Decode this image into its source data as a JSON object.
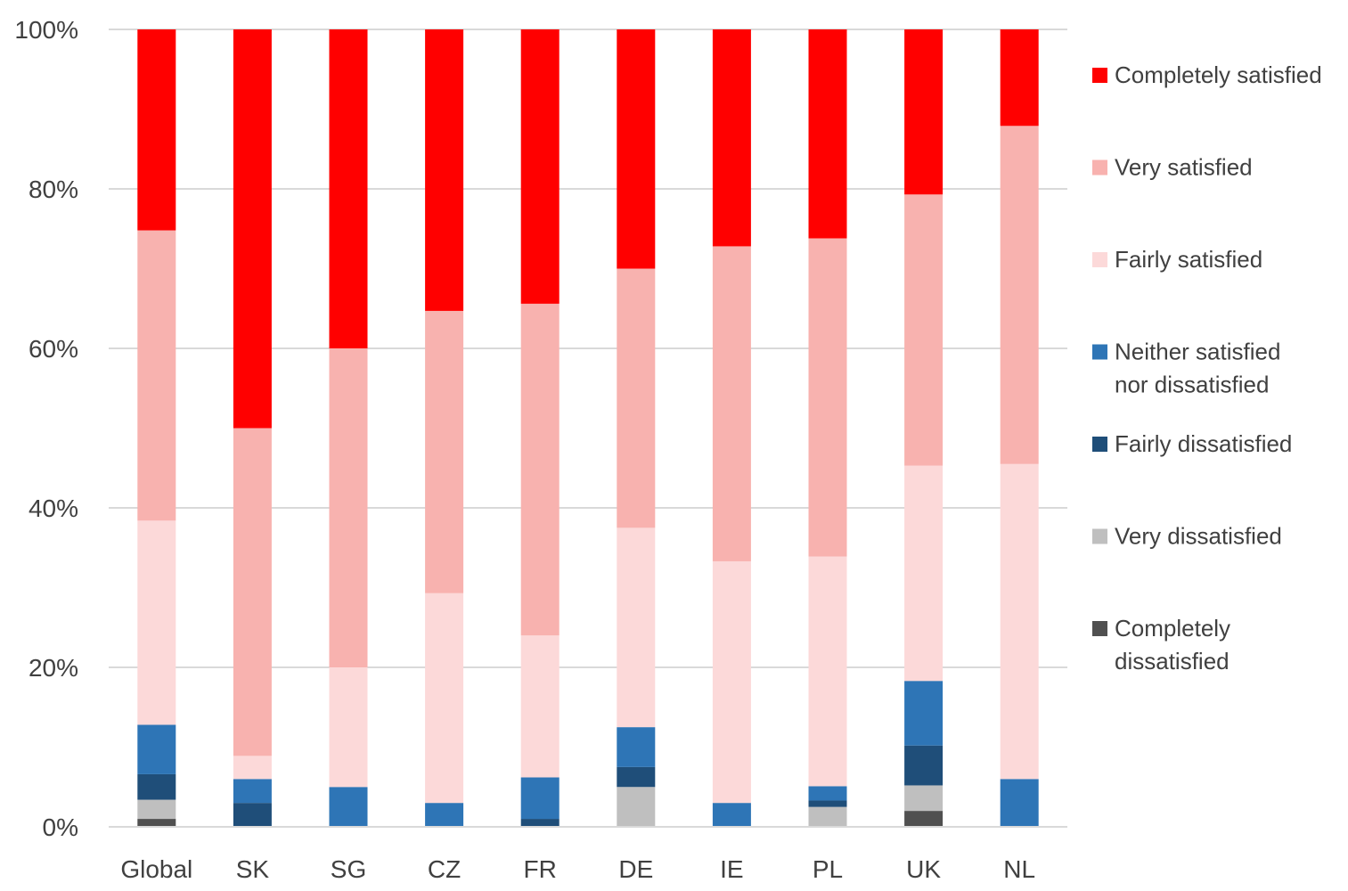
{
  "chart_data": {
    "type": "bar",
    "stacked": true,
    "normalized": true,
    "title": "",
    "xlabel": "",
    "ylabel": "",
    "ylim": [
      0,
      100
    ],
    "y_ticks": [
      "0%",
      "20%",
      "40%",
      "60%",
      "80%",
      "100%"
    ],
    "y_tick_values": [
      0,
      20,
      40,
      60,
      80,
      100
    ],
    "grid": true,
    "legend_position": "right",
    "categories": [
      "Global",
      "SK",
      "SG",
      "CZ",
      "FR",
      "DE",
      "IE",
      "PL",
      "UK",
      "NL"
    ],
    "series": [
      {
        "name": "Completely dissatisfied",
        "legend_lines": [
          "Completely",
          "dissatisfied"
        ],
        "color": "#505050",
        "values": [
          1,
          0,
          0,
          0,
          0,
          0,
          0,
          0,
          2,
          0
        ]
      },
      {
        "name": "Very dissatisfied",
        "legend_lines": [
          "Very dissatisfied"
        ],
        "color": "#bfbfbf",
        "values": [
          2.4,
          0,
          0,
          0,
          0,
          5,
          0,
          2.5,
          3.2,
          0
        ]
      },
      {
        "name": "Fairly dissatisfied",
        "legend_lines": [
          "Fairly dissatisfied"
        ],
        "color": "#1f4e79",
        "values": [
          3.2,
          3,
          0,
          0,
          1,
          2.5,
          0,
          0.8,
          5,
          0
        ]
      },
      {
        "name": "Neither satisfied nor dissatisfied",
        "legend_lines": [
          "Neither satisfied",
          "nor dissatisfied"
        ],
        "color": "#2e75b6",
        "values": [
          6.2,
          3,
          5,
          3,
          5.2,
          5,
          3,
          1.8,
          8.1,
          6
        ]
      },
      {
        "name": "Fairly satisfied",
        "legend_lines": [
          "Fairly satisfied"
        ],
        "color": "#fcd9d9",
        "values": [
          25.6,
          2.9,
          15,
          26.3,
          17.8,
          25,
          30.3,
          28.8,
          27,
          39.5
        ]
      },
      {
        "name": "Very satisfied",
        "legend_lines": [
          "Very satisfied"
        ],
        "color": "#f8b2af",
        "values": [
          36.4,
          41.1,
          40,
          35.4,
          41.6,
          32.5,
          39.5,
          39.9,
          34,
          42.4
        ]
      },
      {
        "name": "Completely satisfied",
        "legend_lines": [
          "Completely satisfied"
        ],
        "color": "#ff0000",
        "values": [
          25.2,
          50,
          40,
          35.3,
          34.4,
          30,
          27.2,
          26.2,
          20.7,
          12.1
        ]
      }
    ]
  }
}
